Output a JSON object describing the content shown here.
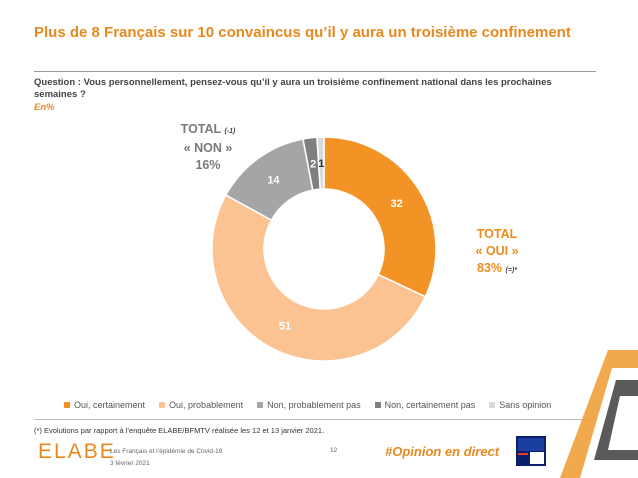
{
  "title": "Plus de 8 Français sur 10 convaincus qu’il y aura un troisième confinement",
  "question": "Question : Vous personnellement, pensez-vous qu’il y aura un troisième confinement national dans les prochaines semaines ?",
  "unit": "En%",
  "chart_data": {
    "type": "pie",
    "donut": true,
    "categories": [
      "Oui, certainement",
      "Oui, probablement",
      "Non, probablement pas",
      "Non, certainement pas",
      "Sans opinion"
    ],
    "values": [
      32,
      51,
      14,
      2,
      1
    ],
    "colors": [
      "#f39325",
      "#fbc392",
      "#a5a5a5",
      "#7f7f7f",
      "#d9d9d9"
    ],
    "legend_position": "bottom",
    "annotations": {
      "non": {
        "total_label": "TOTAL",
        "name": "« NON »",
        "value": "16%",
        "evolution": "(-1)"
      },
      "oui": {
        "total_label": "TOTAL",
        "name": "« OUI »",
        "value": "83%",
        "evolution": "(=)*"
      }
    }
  },
  "footnote": "(*) Evolutions par rapport à l’enquête ELABE/BFMTV réalisée les 12 et 13 janvier 2021.",
  "footer": {
    "logo": "ELABE",
    "study": "Les Français et l’épidémie de Covid-19",
    "date": "3 février 2021",
    "page": "12",
    "hashtag": "#Opinion en direct",
    "partner_logo": "BFM TV"
  }
}
